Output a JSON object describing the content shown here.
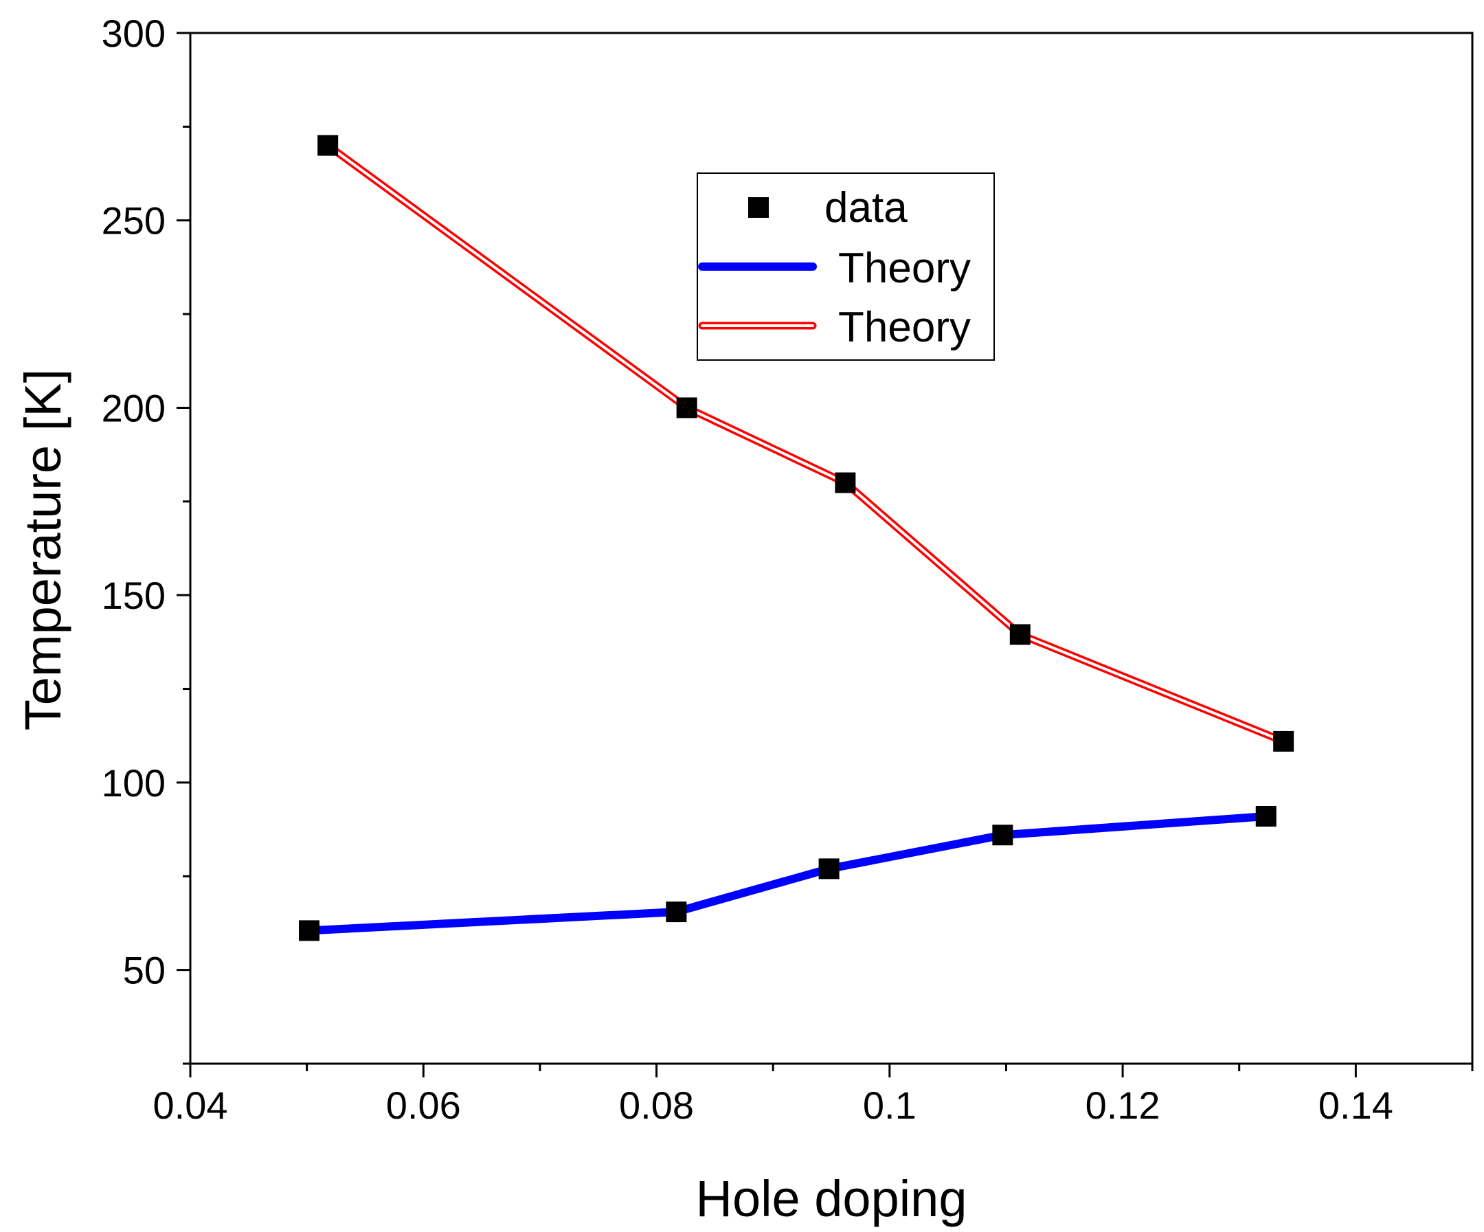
{
  "chart_data": {
    "type": "line",
    "xlabel": "Hole doping",
    "ylabel": "Temperature [K]",
    "xlim": [
      0.04,
      0.15
    ],
    "ylim": [
      25,
      300
    ],
    "x_ticks": [
      0.04,
      0.06,
      0.08,
      0.1,
      0.12,
      0.14
    ],
    "x_tick_labels": [
      "0.04",
      "0.06",
      "0.08",
      "0.1",
      "0.12",
      "0.14"
    ],
    "y_ticks": [
      50,
      100,
      150,
      200,
      250,
      300
    ],
    "y_tick_labels": [
      "50",
      "100",
      "150",
      "200",
      "250",
      "300"
    ],
    "legend_position": "top-center",
    "series": [
      {
        "name": "data",
        "kind": "markers",
        "marker": "square",
        "color": "#000000",
        "points": [
          {
            "x": 0.0502,
            "y": 60.5
          },
          {
            "x": 0.0817,
            "y": 65.5
          },
          {
            "x": 0.0948,
            "y": 77
          },
          {
            "x": 0.1097,
            "y": 86
          },
          {
            "x": 0.1323,
            "y": 91
          },
          {
            "x": 0.0518,
            "y": 270
          },
          {
            "x": 0.0826,
            "y": 200
          },
          {
            "x": 0.0962,
            "y": 180
          },
          {
            "x": 0.1112,
            "y": 139.5
          },
          {
            "x": 0.1338,
            "y": 111
          }
        ]
      },
      {
        "name": "Theory",
        "kind": "line",
        "style": "solid",
        "color": "#0000ff",
        "x": [
          0.0502,
          0.0817,
          0.0948,
          0.1097,
          0.1323
        ],
        "y": [
          60.5,
          65.5,
          77,
          86,
          91
        ]
      },
      {
        "name": "Theory",
        "kind": "line",
        "style": "double",
        "color": "#ff0000",
        "x": [
          0.0518,
          0.0826,
          0.0962,
          0.1112,
          0.1338
        ],
        "y": [
          270,
          200,
          180,
          139.5,
          111
        ]
      }
    ]
  }
}
